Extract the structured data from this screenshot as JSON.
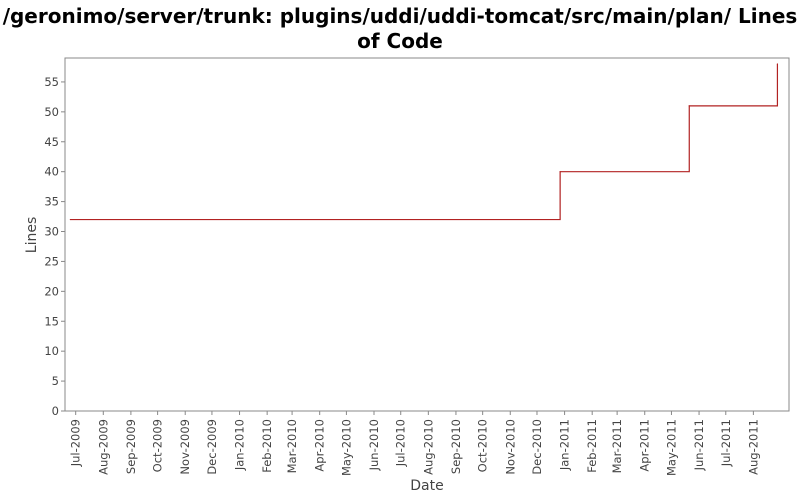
{
  "chart_data": {
    "type": "line",
    "title": "/geronimo/server/trunk: plugins/uddi/uddi-tomcat/src/main/plan/ Lines of Code",
    "xlabel": "Date",
    "ylabel": "Lines",
    "ylim": [
      0,
      59
    ],
    "yticks": [
      0,
      5,
      10,
      15,
      20,
      25,
      30,
      35,
      40,
      45,
      50,
      55
    ],
    "xlim": [
      "2009-06-19",
      "2011-09-10"
    ],
    "xtick_labels": [
      "Jul-2009",
      "Aug-2009",
      "Sep-2009",
      "Oct-2009",
      "Nov-2009",
      "Dec-2009",
      "Jan-2010",
      "Feb-2010",
      "Mar-2010",
      "Apr-2010",
      "May-2010",
      "Jun-2010",
      "Jul-2010",
      "Aug-2010",
      "Sep-2010",
      "Oct-2010",
      "Nov-2010",
      "Dec-2010",
      "Jan-2011",
      "Feb-2011",
      "Mar-2011",
      "Apr-2011",
      "May-2011",
      "Jun-2011",
      "Jul-2011",
      "Aug-2011"
    ],
    "xtick_dates": [
      "2009-07-01",
      "2009-08-01",
      "2009-09-01",
      "2009-10-01",
      "2009-11-01",
      "2009-12-01",
      "2010-01-01",
      "2010-02-01",
      "2010-03-01",
      "2010-04-01",
      "2010-05-01",
      "2010-06-01",
      "2010-07-01",
      "2010-08-01",
      "2010-09-01",
      "2010-10-01",
      "2010-11-01",
      "2010-12-01",
      "2011-01-01",
      "2011-02-01",
      "2011-03-01",
      "2011-04-01",
      "2011-05-01",
      "2011-06-01",
      "2011-07-01",
      "2011-08-01"
    ],
    "step": "after",
    "grid": false,
    "series": [
      {
        "color": "#b22222",
        "points": [
          {
            "x": "2009-06-25",
            "y": 32
          },
          {
            "x": "2010-12-27",
            "y": 40
          },
          {
            "x": "2011-05-21",
            "y": 51
          },
          {
            "x": "2011-08-28",
            "y": 58
          }
        ]
      }
    ]
  }
}
